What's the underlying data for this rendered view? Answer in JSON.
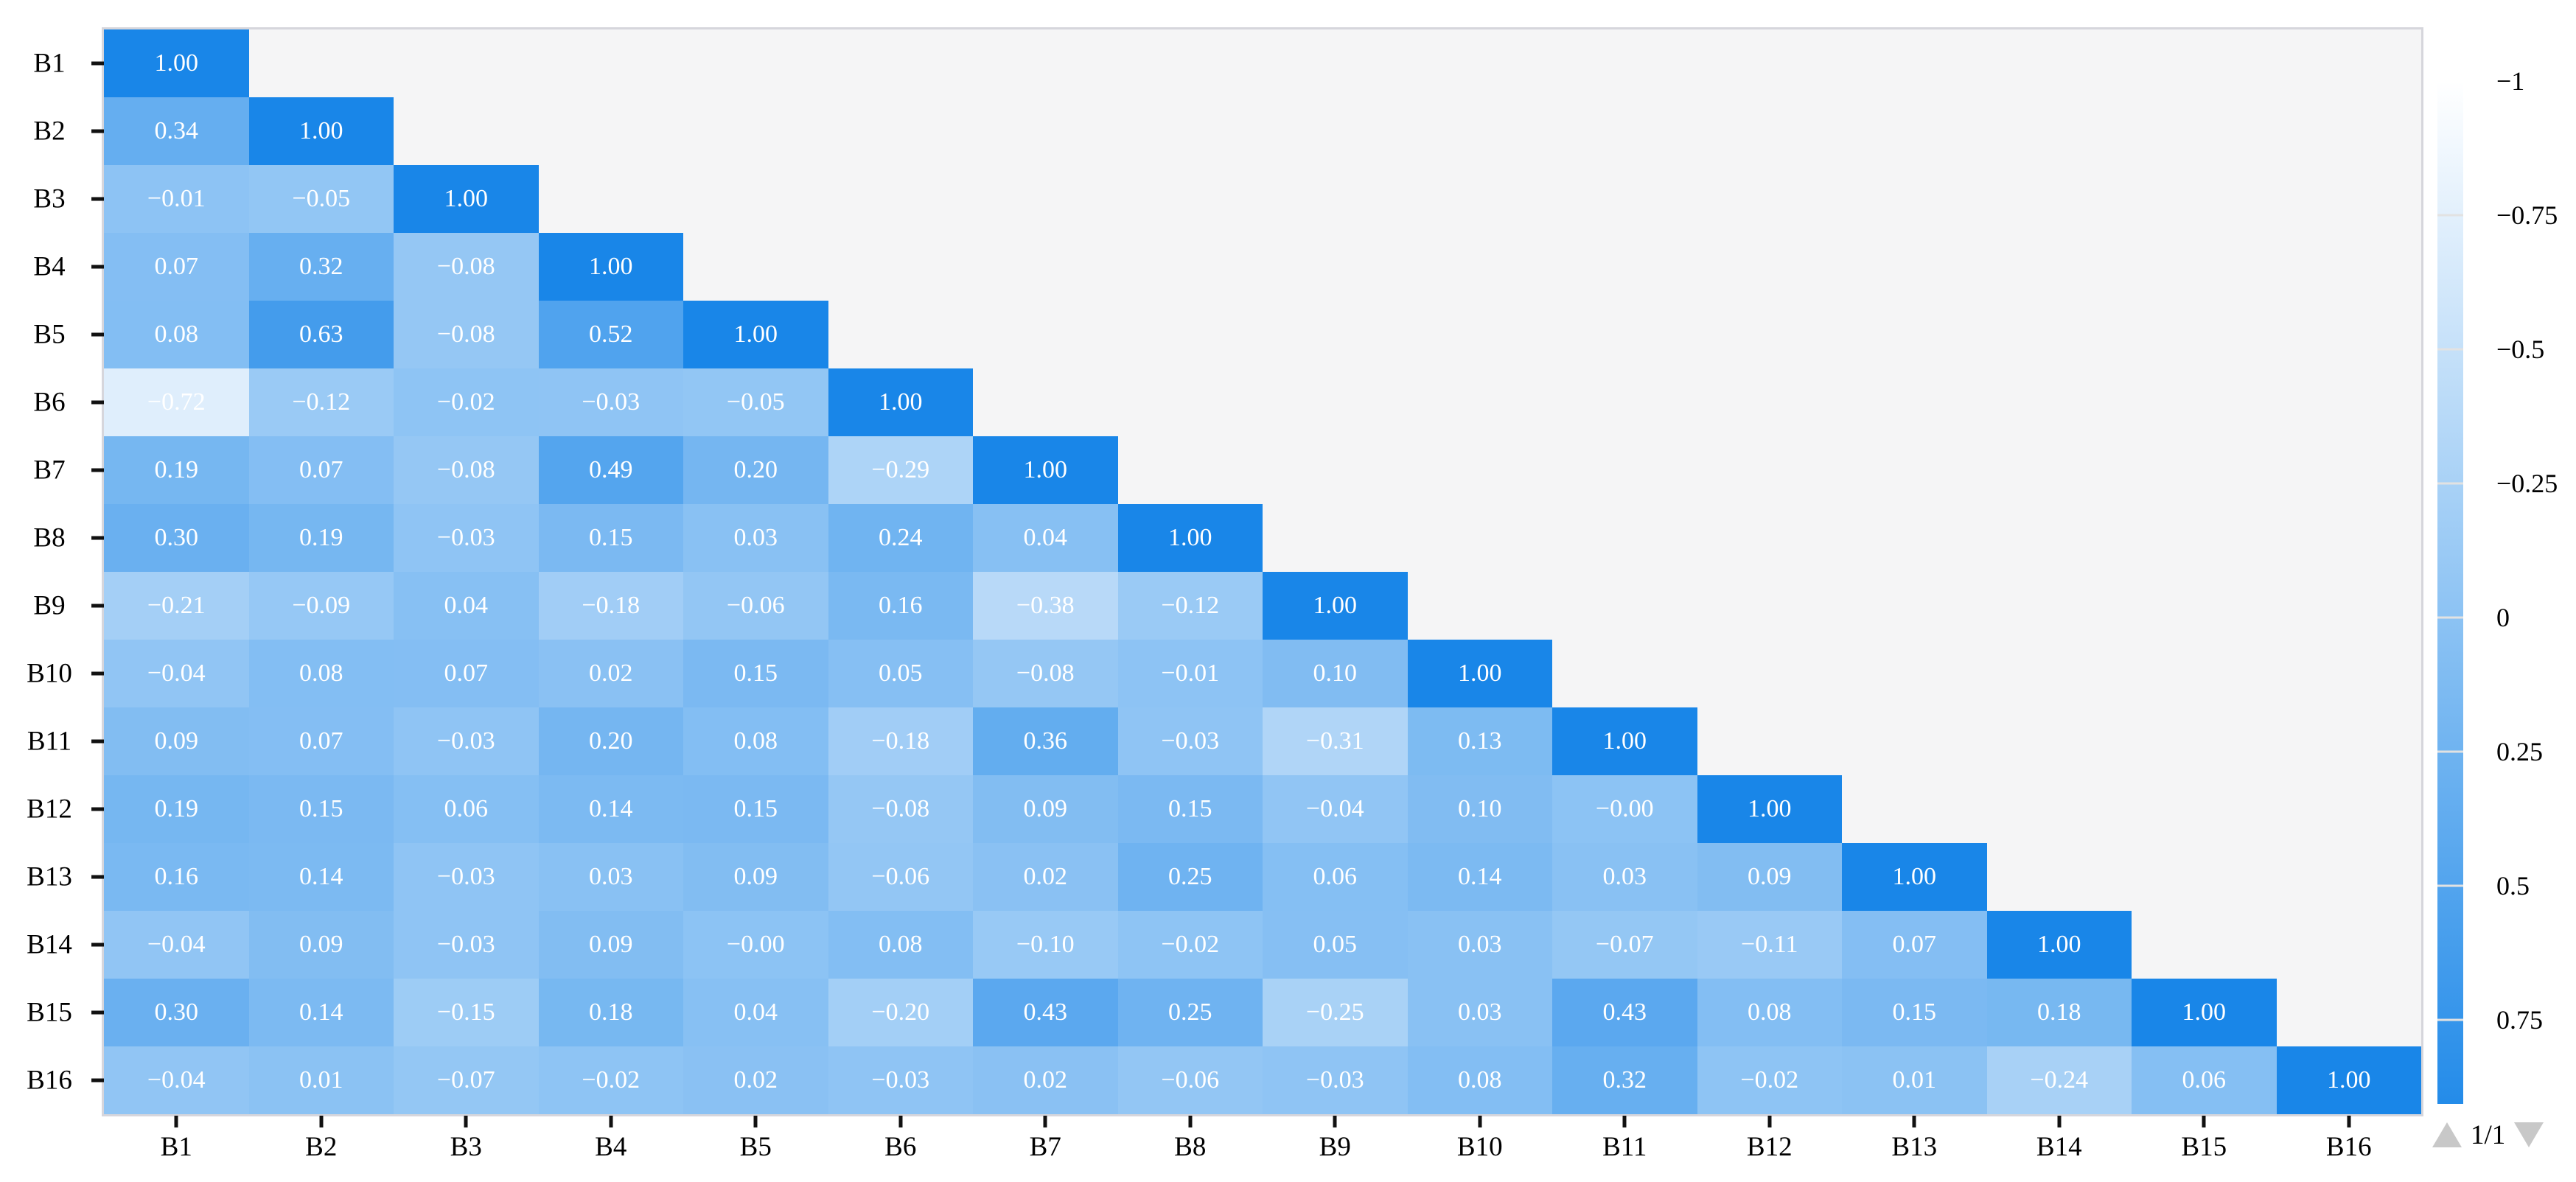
{
  "chart_data": {
    "type": "heatmap",
    "subtype": "correlation-matrix-lower-triangle",
    "title": "",
    "categories": [
      "B1",
      "B2",
      "B3",
      "B4",
      "B5",
      "B6",
      "B7",
      "B8",
      "B9",
      "B10",
      "B11",
      "B12",
      "B13",
      "B14",
      "B15",
      "B16"
    ],
    "x_tick_labels": [
      "B1",
      "B2",
      "B3",
      "B4",
      "B5",
      "B6",
      "B7",
      "B8",
      "B9",
      "B10",
      "B11",
      "B12",
      "B13",
      "B14",
      "B15",
      "B16"
    ],
    "y_tick_labels": [
      "B1",
      "B2",
      "B3",
      "B4",
      "B5",
      "B6",
      "B7",
      "B8",
      "B9",
      "B10",
      "B11",
      "B12",
      "B13",
      "B14",
      "B15",
      "B16"
    ],
    "value_format": "0.00 with unicode minus, white text centered in cell",
    "rows": [
      [
        "1.00"
      ],
      [
        "0.34",
        "1.00"
      ],
      [
        "-0.01",
        "-0.05",
        "1.00"
      ],
      [
        "0.07",
        "0.32",
        "-0.08",
        "1.00"
      ],
      [
        "0.08",
        "0.63",
        "-0.08",
        "0.52",
        "1.00"
      ],
      [
        "-0.72",
        "-0.12",
        "-0.02",
        "-0.03",
        "-0.05",
        "1.00"
      ],
      [
        "0.19",
        "0.07",
        "-0.08",
        "0.49",
        "0.20",
        "-0.29",
        "1.00"
      ],
      [
        "0.30",
        "0.19",
        "-0.03",
        "0.15",
        "0.03",
        "0.24",
        "0.04",
        "1.00"
      ],
      [
        "-0.21",
        "-0.09",
        "0.04",
        "-0.18",
        "-0.06",
        "0.16",
        "-0.38",
        "-0.12",
        "1.00"
      ],
      [
        "-0.04",
        "0.08",
        "0.07",
        "0.02",
        "0.15",
        "0.05",
        "-0.08",
        "-0.01",
        "0.10",
        "1.00"
      ],
      [
        "0.09",
        "0.07",
        "-0.03",
        "0.20",
        "0.08",
        "-0.18",
        "0.36",
        "-0.03",
        "-0.31",
        "0.13",
        "1.00"
      ],
      [
        "0.19",
        "0.15",
        "0.06",
        "0.14",
        "0.15",
        "-0.08",
        "0.09",
        "0.15",
        "-0.04",
        "0.10",
        "-0.00",
        "1.00"
      ],
      [
        "0.16",
        "0.14",
        "-0.03",
        "0.03",
        "0.09",
        "-0.06",
        "0.02",
        "0.25",
        "0.06",
        "0.14",
        "0.03",
        "0.09",
        "1.00"
      ],
      [
        "-0.04",
        "0.09",
        "-0.03",
        "0.09",
        "-0.00",
        "0.08",
        "-0.10",
        "-0.02",
        "0.05",
        "0.03",
        "-0.07",
        "-0.11",
        "0.07",
        "1.00"
      ],
      [
        "0.30",
        "0.14",
        "-0.15",
        "0.18",
        "0.04",
        "-0.20",
        "0.43",
        "0.25",
        "-0.25",
        "0.03",
        "0.43",
        "0.08",
        "0.15",
        "0.18",
        "1.00"
      ],
      [
        "-0.04",
        "0.01",
        "-0.07",
        "-0.02",
        "0.02",
        "-0.03",
        "0.02",
        "-0.06",
        "-0.03",
        "0.08",
        "0.32",
        "-0.02",
        "0.01",
        "-0.24",
        "0.06",
        "1.00"
      ]
    ],
    "colorscale": {
      "domain": [
        -1,
        1
      ],
      "min_color": "#ffffff",
      "max_color": "#1986e8",
      "orientation": "vertical, -1 at top, 1 at bottom",
      "legend_position": "right"
    },
    "grid": false
  },
  "legend": {
    "tick_labels": [
      "−1",
      "−0.75",
      "−0.5",
      "−0.25",
      "0",
      "0.25",
      "0.5",
      "0.75"
    ],
    "tick_values": [
      -1,
      -0.75,
      -0.5,
      -0.25,
      0,
      0.25,
      0.5,
      0.75
    ]
  },
  "pager": {
    "label": "1/1",
    "up_icon": "up-triangle",
    "down_icon": "down-triangle"
  },
  "colors": {
    "background": "#ffffff",
    "plot_background": "#f5f5f6",
    "plot_border": "#d6d6dc",
    "cell_text": "#ffffff",
    "axis_text": "#000000",
    "axis_tick": "#111111",
    "scale_min_color": "#ffffff",
    "scale_max_color": "#1986e8",
    "legend_separator": "#e2e2e2",
    "pager_arrow": "#c8c8c8",
    "pager_text": "#000000"
  }
}
